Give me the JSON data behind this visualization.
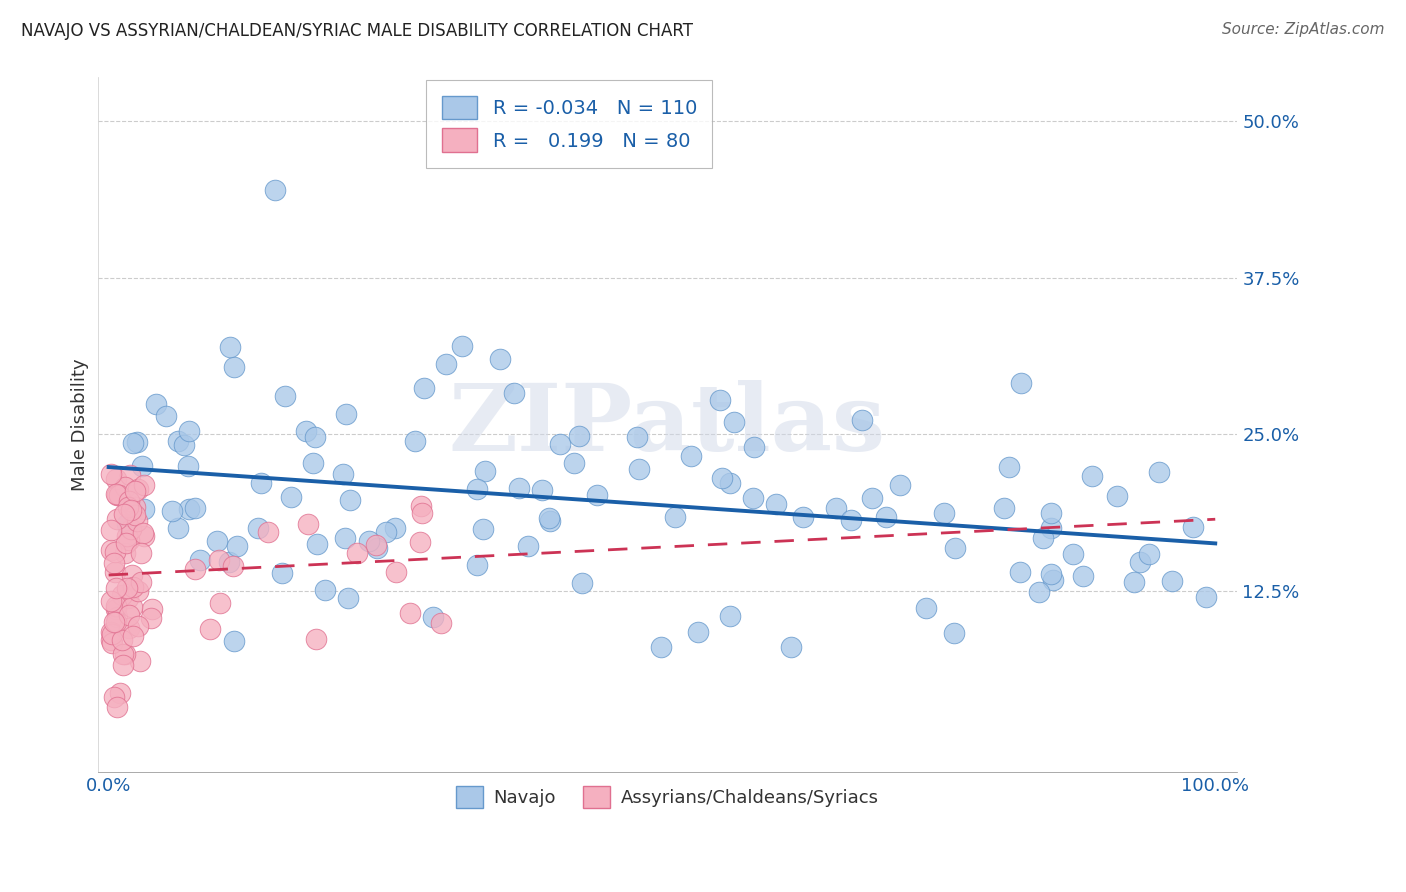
{
  "title": "NAVAJO VS ASSYRIAN/CHALDEAN/SYRIAC MALE DISABILITY CORRELATION CHART",
  "source": "Source: ZipAtlas.com",
  "ylabel": "Male Disability",
  "xlim": [
    -0.01,
    1.02
  ],
  "ylim": [
    -0.02,
    0.535
  ],
  "yticks": [
    0.125,
    0.25,
    0.375,
    0.5
  ],
  "legend_R1": "-0.034",
  "legend_N1": "110",
  "legend_R2": "0.199",
  "legend_N2": "80",
  "navajo_color": "#aac8e8",
  "navajo_edge": "#6699cc",
  "assyrian_color": "#f5b0c0",
  "assyrian_edge": "#e07090",
  "navajo_label": "Navajo",
  "assyrian_label": "Assyrians/Chaldeans/Syriacs",
  "background_color": "#ffffff",
  "grid_color": "#cccccc",
  "watermark": "ZIPatlas",
  "navajo_trend_color": "#1a5fa8",
  "assyrian_trend_color": "#cc3355",
  "seed": 42
}
